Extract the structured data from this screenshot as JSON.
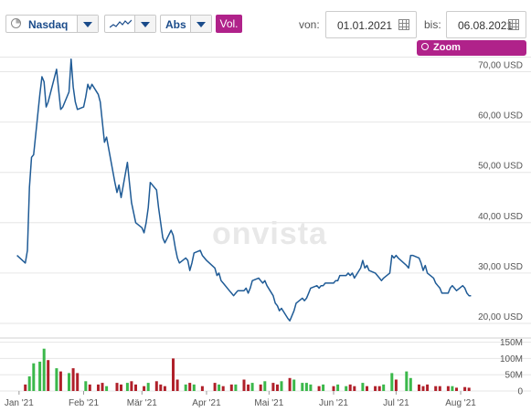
{
  "toolbar": {
    "exchange": "Nasdaq",
    "mode": "Abs",
    "vol_label": "Vol.",
    "from_label": "von:",
    "from_date": "01.01.2021",
    "to_label": "bis:",
    "to_date": "06.08.2021",
    "zoom_reset": "Zoom zurücksetzen"
  },
  "watermark": "onvista",
  "colors": {
    "line": "#1f5b96",
    "vol_up": "#3bb84b",
    "vol_down": "#b0202a",
    "accent": "#b0228a",
    "grid": "#e6e6e6"
  },
  "chart_data": {
    "type": "line",
    "currency": "USD",
    "yticks": [
      20,
      30,
      40,
      50,
      60,
      70
    ],
    "ytick_labels": [
      "20,00 USD",
      "30,00 USD",
      "40,00 USD",
      "50,00 USD",
      "60,00 USD",
      "70,00 USD"
    ],
    "ylim": [
      18,
      73
    ],
    "xticks": [
      "Jan '21",
      "Feb '21",
      "Mär '21",
      "Apr '21",
      "Mai '21",
      "Jun '21",
      "Jul '21",
      "Aug '21"
    ],
    "xtick_dates": [
      "2021-01-01",
      "2021-02-01",
      "2021-03-01",
      "2021-04-01",
      "2021-05-01",
      "2021-06-01",
      "2021-07-01",
      "2021-08-01"
    ],
    "xlim": [
      "2020-12-29",
      "2021-08-08"
    ],
    "series": [
      {
        "values": [
          {
            "x": "2020-12-31",
            "y": 33.5
          },
          {
            "x": "2021-01-04",
            "y": 32
          },
          {
            "x": "2021-01-05",
            "y": 34.5
          },
          {
            "x": "2021-01-06",
            "y": 47
          },
          {
            "x": "2021-01-07",
            "y": 53
          },
          {
            "x": "2021-01-08",
            "y": 53.5
          },
          {
            "x": "2021-01-11",
            "y": 65.5
          },
          {
            "x": "2021-01-12",
            "y": 69
          },
          {
            "x": "2021-01-13",
            "y": 68
          },
          {
            "x": "2021-01-14",
            "y": 63
          },
          {
            "x": "2021-01-15",
            "y": 64
          },
          {
            "x": "2021-01-19",
            "y": 70.5
          },
          {
            "x": "2021-01-20",
            "y": 66.5
          },
          {
            "x": "2021-01-21",
            "y": 62.5
          },
          {
            "x": "2021-01-22",
            "y": 63
          },
          {
            "x": "2021-01-25",
            "y": 66
          },
          {
            "x": "2021-01-26",
            "y": 72.5
          },
          {
            "x": "2021-01-27",
            "y": 67
          },
          {
            "x": "2021-01-28",
            "y": 64
          },
          {
            "x": "2021-01-29",
            "y": 62.5
          },
          {
            "x": "2021-02-01",
            "y": 63
          },
          {
            "x": "2021-02-02",
            "y": 65
          },
          {
            "x": "2021-02-03",
            "y": 67.5
          },
          {
            "x": "2021-02-04",
            "y": 66.5
          },
          {
            "x": "2021-02-05",
            "y": 67.5
          },
          {
            "x": "2021-02-08",
            "y": 65.5
          },
          {
            "x": "2021-02-09",
            "y": 64
          },
          {
            "x": "2021-02-10",
            "y": 60
          },
          {
            "x": "2021-02-11",
            "y": 56
          },
          {
            "x": "2021-02-12",
            "y": 57
          },
          {
            "x": "2021-02-16",
            "y": 48
          },
          {
            "x": "2021-02-17",
            "y": 46
          },
          {
            "x": "2021-02-18",
            "y": 47.5
          },
          {
            "x": "2021-02-19",
            "y": 45
          },
          {
            "x": "2021-02-22",
            "y": 52
          },
          {
            "x": "2021-02-23",
            "y": 48
          },
          {
            "x": "2021-02-24",
            "y": 44
          },
          {
            "x": "2021-02-25",
            "y": 42
          },
          {
            "x": "2021-02-26",
            "y": 40
          },
          {
            "x": "2021-03-01",
            "y": 39
          },
          {
            "x": "2021-03-02",
            "y": 38
          },
          {
            "x": "2021-03-03",
            "y": 40
          },
          {
            "x": "2021-03-04",
            "y": 43
          },
          {
            "x": "2021-03-05",
            "y": 48
          },
          {
            "x": "2021-03-08",
            "y": 46.5
          },
          {
            "x": "2021-03-09",
            "y": 43
          },
          {
            "x": "2021-03-10",
            "y": 40
          },
          {
            "x": "2021-03-11",
            "y": 37
          },
          {
            "x": "2021-03-12",
            "y": 36
          },
          {
            "x": "2021-03-15",
            "y": 38.5
          },
          {
            "x": "2021-03-16",
            "y": 37.5
          },
          {
            "x": "2021-03-17",
            "y": 35
          },
          {
            "x": "2021-03-18",
            "y": 33
          },
          {
            "x": "2021-03-19",
            "y": 32
          },
          {
            "x": "2021-03-22",
            "y": 33
          },
          {
            "x": "2021-03-23",
            "y": 32.5
          },
          {
            "x": "2021-03-24",
            "y": 30.5
          },
          {
            "x": "2021-03-25",
            "y": 32
          },
          {
            "x": "2021-03-26",
            "y": 34
          },
          {
            "x": "2021-03-29",
            "y": 34.5
          },
          {
            "x": "2021-03-30",
            "y": 33.5
          },
          {
            "x": "2021-03-31",
            "y": 33
          },
          {
            "x": "2021-04-01",
            "y": 32.5
          },
          {
            "x": "2021-04-05",
            "y": 31
          },
          {
            "x": "2021-04-06",
            "y": 29.5
          },
          {
            "x": "2021-04-07",
            "y": 30
          },
          {
            "x": "2021-04-08",
            "y": 28.5
          },
          {
            "x": "2021-04-09",
            "y": 28
          },
          {
            "x": "2021-04-12",
            "y": 26.5
          },
          {
            "x": "2021-04-13",
            "y": 26
          },
          {
            "x": "2021-04-14",
            "y": 25.5
          },
          {
            "x": "2021-04-15",
            "y": 26
          },
          {
            "x": "2021-04-16",
            "y": 26.5
          },
          {
            "x": "2021-04-19",
            "y": 26.5
          },
          {
            "x": "2021-04-20",
            "y": 27
          },
          {
            "x": "2021-04-21",
            "y": 26
          },
          {
            "x": "2021-04-22",
            "y": 27
          },
          {
            "x": "2021-04-23",
            "y": 28.5
          },
          {
            "x": "2021-04-26",
            "y": 29
          },
          {
            "x": "2021-04-27",
            "y": 28.5
          },
          {
            "x": "2021-04-28",
            "y": 28
          },
          {
            "x": "2021-04-29",
            "y": 28.5
          },
          {
            "x": "2021-04-30",
            "y": 27.5
          },
          {
            "x": "2021-05-03",
            "y": 25.5
          },
          {
            "x": "2021-05-04",
            "y": 24
          },
          {
            "x": "2021-05-05",
            "y": 23.5
          },
          {
            "x": "2021-05-06",
            "y": 22.5
          },
          {
            "x": "2021-05-07",
            "y": 23
          },
          {
            "x": "2021-05-10",
            "y": 21
          },
          {
            "x": "2021-05-11",
            "y": 20.5
          },
          {
            "x": "2021-05-12",
            "y": 21.5
          },
          {
            "x": "2021-05-13",
            "y": 22.5
          },
          {
            "x": "2021-05-14",
            "y": 24
          },
          {
            "x": "2021-05-17",
            "y": 25
          },
          {
            "x": "2021-05-18",
            "y": 24.5
          },
          {
            "x": "2021-05-19",
            "y": 25
          },
          {
            "x": "2021-05-20",
            "y": 26
          },
          {
            "x": "2021-05-21",
            "y": 27
          },
          {
            "x": "2021-05-24",
            "y": 27.5
          },
          {
            "x": "2021-05-25",
            "y": 27
          },
          {
            "x": "2021-05-26",
            "y": 27.5
          },
          {
            "x": "2021-05-27",
            "y": 27.5
          },
          {
            "x": "2021-05-28",
            "y": 28
          },
          {
            "x": "2021-06-01",
            "y": 28
          },
          {
            "x": "2021-06-02",
            "y": 28.5
          },
          {
            "x": "2021-06-03",
            "y": 28.5
          },
          {
            "x": "2021-06-04",
            "y": 29.5
          },
          {
            "x": "2021-06-07",
            "y": 29.5
          },
          {
            "x": "2021-06-08",
            "y": 30
          },
          {
            "x": "2021-06-09",
            "y": 29.5
          },
          {
            "x": "2021-06-10",
            "y": 30
          },
          {
            "x": "2021-06-11",
            "y": 29
          },
          {
            "x": "2021-06-14",
            "y": 31
          },
          {
            "x": "2021-06-15",
            "y": 32.5
          },
          {
            "x": "2021-06-16",
            "y": 31
          },
          {
            "x": "2021-06-17",
            "y": 31.5
          },
          {
            "x": "2021-06-18",
            "y": 30.5
          },
          {
            "x": "2021-06-21",
            "y": 30
          },
          {
            "x": "2021-06-22",
            "y": 29.5
          },
          {
            "x": "2021-06-23",
            "y": 29
          },
          {
            "x": "2021-06-24",
            "y": 28.5
          },
          {
            "x": "2021-06-25",
            "y": 29
          },
          {
            "x": "2021-06-28",
            "y": 30
          },
          {
            "x": "2021-06-29",
            "y": 33.5
          },
          {
            "x": "2021-06-30",
            "y": 33
          },
          {
            "x": "2021-07-01",
            "y": 33.5
          },
          {
            "x": "2021-07-02",
            "y": 33
          },
          {
            "x": "2021-07-06",
            "y": 31.5
          },
          {
            "x": "2021-07-07",
            "y": 31
          },
          {
            "x": "2021-07-08",
            "y": 33.5
          },
          {
            "x": "2021-07-09",
            "y": 33.5
          },
          {
            "x": "2021-07-12",
            "y": 33
          },
          {
            "x": "2021-07-13",
            "y": 32
          },
          {
            "x": "2021-07-14",
            "y": 30.5
          },
          {
            "x": "2021-07-15",
            "y": 31.5
          },
          {
            "x": "2021-07-16",
            "y": 30
          },
          {
            "x": "2021-07-19",
            "y": 29
          },
          {
            "x": "2021-07-20",
            "y": 28
          },
          {
            "x": "2021-07-21",
            "y": 27.5
          },
          {
            "x": "2021-07-22",
            "y": 27
          },
          {
            "x": "2021-07-23",
            "y": 26
          },
          {
            "x": "2021-07-26",
            "y": 26
          },
          {
            "x": "2021-07-27",
            "y": 27
          },
          {
            "x": "2021-07-28",
            "y": 27.5
          },
          {
            "x": "2021-07-29",
            "y": 27
          },
          {
            "x": "2021-07-30",
            "y": 26.5
          },
          {
            "x": "2021-08-02",
            "y": 27.5
          },
          {
            "x": "2021-08-03",
            "y": 27
          },
          {
            "x": "2021-08-04",
            "y": 26
          },
          {
            "x": "2021-08-05",
            "y": 25.5
          },
          {
            "x": "2021-08-06",
            "y": 25.5
          }
        ]
      }
    ],
    "volume": {
      "ytick_labels": [
        "0",
        "50M",
        "100M",
        "150M"
      ],
      "yticks": [
        0,
        50,
        100,
        150
      ],
      "ylim": [
        0,
        160
      ],
      "unit": "M",
      "bars": [
        {
          "x": "2021-01-04",
          "v": 20,
          "up": false
        },
        {
          "x": "2021-01-06",
          "v": 45,
          "up": true
        },
        {
          "x": "2021-01-08",
          "v": 85,
          "up": true
        },
        {
          "x": "2021-01-11",
          "v": 90,
          "up": true
        },
        {
          "x": "2021-01-13",
          "v": 130,
          "up": true
        },
        {
          "x": "2021-01-15",
          "v": 95,
          "up": false
        },
        {
          "x": "2021-01-19",
          "v": 70,
          "up": true
        },
        {
          "x": "2021-01-21",
          "v": 60,
          "up": false
        },
        {
          "x": "2021-01-25",
          "v": 55,
          "up": true
        },
        {
          "x": "2021-01-27",
          "v": 70,
          "up": false
        },
        {
          "x": "2021-01-29",
          "v": 55,
          "up": false
        },
        {
          "x": "2021-02-02",
          "v": 30,
          "up": true
        },
        {
          "x": "2021-02-04",
          "v": 20,
          "up": false
        },
        {
          "x": "2021-02-08",
          "v": 20,
          "up": false
        },
        {
          "x": "2021-02-10",
          "v": 25,
          "up": false
        },
        {
          "x": "2021-02-12",
          "v": 15,
          "up": true
        },
        {
          "x": "2021-02-17",
          "v": 25,
          "up": false
        },
        {
          "x": "2021-02-19",
          "v": 20,
          "up": false
        },
        {
          "x": "2021-02-22",
          "v": 25,
          "up": true
        },
        {
          "x": "2021-02-24",
          "v": 30,
          "up": false
        },
        {
          "x": "2021-02-26",
          "v": 20,
          "up": false
        },
        {
          "x": "2021-03-02",
          "v": 15,
          "up": false
        },
        {
          "x": "2021-03-04",
          "v": 25,
          "up": true
        },
        {
          "x": "2021-03-08",
          "v": 30,
          "up": false
        },
        {
          "x": "2021-03-10",
          "v": 20,
          "up": false
        },
        {
          "x": "2021-03-12",
          "v": 15,
          "up": false
        },
        {
          "x": "2021-03-16",
          "v": 100,
          "up": false
        },
        {
          "x": "2021-03-18",
          "v": 35,
          "up": false
        },
        {
          "x": "2021-03-22",
          "v": 20,
          "up": true
        },
        {
          "x": "2021-03-24",
          "v": 25,
          "up": false
        },
        {
          "x": "2021-03-26",
          "v": 20,
          "up": true
        },
        {
          "x": "2021-03-30",
          "v": 15,
          "up": false
        },
        {
          "x": "2021-04-05",
          "v": 25,
          "up": false
        },
        {
          "x": "2021-04-07",
          "v": 20,
          "up": true
        },
        {
          "x": "2021-04-09",
          "v": 15,
          "up": false
        },
        {
          "x": "2021-04-13",
          "v": 20,
          "up": false
        },
        {
          "x": "2021-04-15",
          "v": 20,
          "up": true
        },
        {
          "x": "2021-04-19",
          "v": 35,
          "up": false
        },
        {
          "x": "2021-04-21",
          "v": 20,
          "up": false
        },
        {
          "x": "2021-04-23",
          "v": 25,
          "up": true
        },
        {
          "x": "2021-04-27",
          "v": 20,
          "up": false
        },
        {
          "x": "2021-04-29",
          "v": 30,
          "up": true
        },
        {
          "x": "2021-05-03",
          "v": 25,
          "up": false
        },
        {
          "x": "2021-05-05",
          "v": 20,
          "up": false
        },
        {
          "x": "2021-05-07",
          "v": 30,
          "up": true
        },
        {
          "x": "2021-05-11",
          "v": 40,
          "up": false
        },
        {
          "x": "2021-05-13",
          "v": 35,
          "up": true
        },
        {
          "x": "2021-05-17",
          "v": 25,
          "up": true
        },
        {
          "x": "2021-05-19",
          "v": 25,
          "up": true
        },
        {
          "x": "2021-05-21",
          "v": 20,
          "up": true
        },
        {
          "x": "2021-05-25",
          "v": 15,
          "up": false
        },
        {
          "x": "2021-05-27",
          "v": 20,
          "up": true
        },
        {
          "x": "2021-06-01",
          "v": 15,
          "up": false
        },
        {
          "x": "2021-06-03",
          "v": 20,
          "up": true
        },
        {
          "x": "2021-06-07",
          "v": 15,
          "up": true
        },
        {
          "x": "2021-06-09",
          "v": 20,
          "up": false
        },
        {
          "x": "2021-06-11",
          "v": 15,
          "up": false
        },
        {
          "x": "2021-06-15",
          "v": 25,
          "up": true
        },
        {
          "x": "2021-06-17",
          "v": 15,
          "up": false
        },
        {
          "x": "2021-06-21",
          "v": 15,
          "up": false
        },
        {
          "x": "2021-06-23",
          "v": 15,
          "up": false
        },
        {
          "x": "2021-06-25",
          "v": 20,
          "up": true
        },
        {
          "x": "2021-06-29",
          "v": 55,
          "up": true
        },
        {
          "x": "2021-07-01",
          "v": 35,
          "up": false
        },
        {
          "x": "2021-07-06",
          "v": 60,
          "up": true
        },
        {
          "x": "2021-07-08",
          "v": 40,
          "up": true
        },
        {
          "x": "2021-07-12",
          "v": 20,
          "up": false
        },
        {
          "x": "2021-07-14",
          "v": 15,
          "up": false
        },
        {
          "x": "2021-07-16",
          "v": 20,
          "up": false
        },
        {
          "x": "2021-07-20",
          "v": 15,
          "up": false
        },
        {
          "x": "2021-07-22",
          "v": 15,
          "up": false
        },
        {
          "x": "2021-07-26",
          "v": 15,
          "up": false
        },
        {
          "x": "2021-07-28",
          "v": 15,
          "up": true
        },
        {
          "x": "2021-07-30",
          "v": 10,
          "up": false
        },
        {
          "x": "2021-08-03",
          "v": 12,
          "up": false
        },
        {
          "x": "2021-08-05",
          "v": 10,
          "up": false
        }
      ]
    }
  }
}
